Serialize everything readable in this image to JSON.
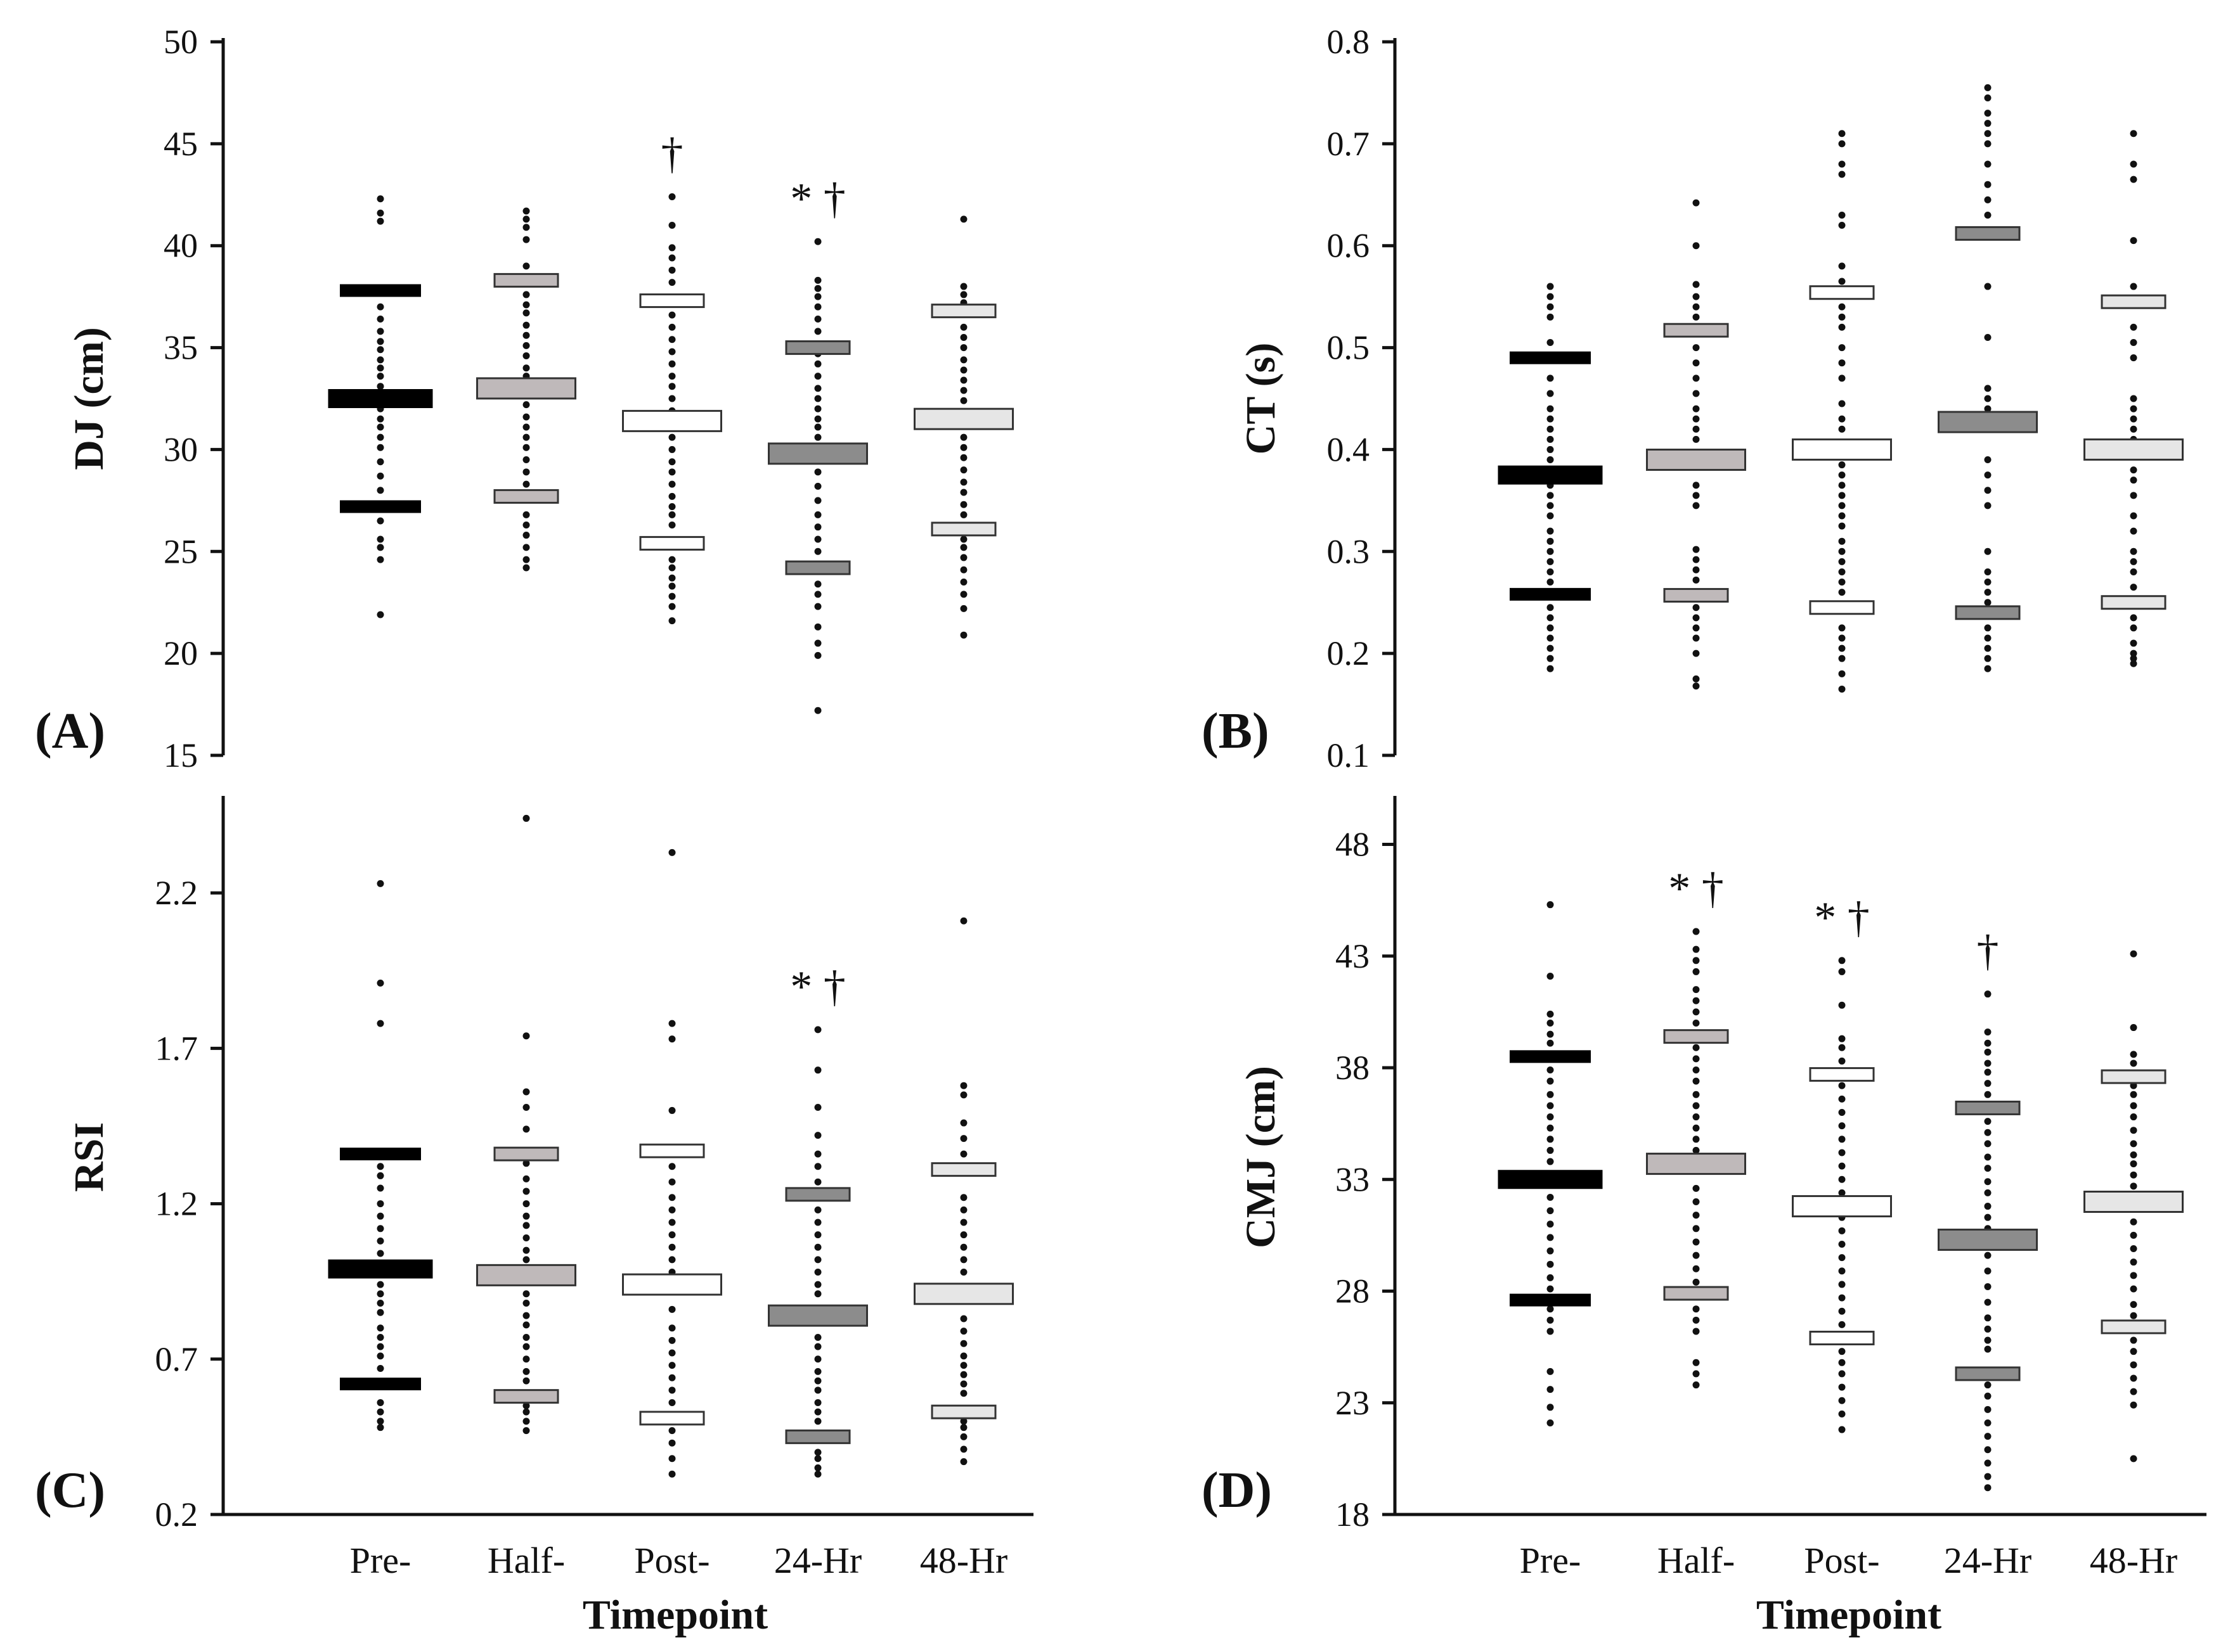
{
  "figure": {
    "x_axis_title": "Timepoint",
    "categories": [
      "Pre-",
      "Half-",
      "Post-",
      "24-Hr",
      "48-Hr"
    ],
    "colors": {
      "Pre-": "#000000",
      "Half-": "#bfb9ba",
      "Post-": "#ffffff",
      "24-Hr": "#8c8c8c",
      "48-Hr": "#e6e6e6",
      "ink": "#111111"
    }
  },
  "chart_data": [
    {
      "id": "A",
      "type": "scatter",
      "panel_label": "(A)",
      "ylabel": "DJ (cm)",
      "ylim": [
        15,
        50
      ],
      "yticks": [
        "15",
        "20",
        "25",
        "30",
        "35",
        "40",
        "45",
        "50"
      ],
      "series": [
        {
          "name": "Pre-",
          "mean": 32.5,
          "upper": 37.8,
          "lower": 27.2,
          "points": [
            21.9,
            24.6,
            25.2,
            25.6,
            26.5,
            28.0,
            28.7,
            29.4,
            30.1,
            30.6,
            31.1,
            31.5,
            32.0,
            33.1,
            33.6,
            34.0,
            34.4,
            34.9,
            35.3,
            35.8,
            36.4,
            37.0,
            41.2,
            41.6,
            42.3
          ]
        },
        {
          "name": "Half-",
          "mean": 33.0,
          "upper": 38.3,
          "lower": 27.7,
          "points": [
            24.2,
            24.6,
            25.2,
            25.8,
            26.3,
            26.8,
            28.3,
            28.9,
            29.5,
            30.1,
            30.6,
            31.1,
            31.6,
            32.2,
            33.6,
            34.0,
            34.6,
            35.1,
            35.6,
            36.1,
            36.7,
            37.1,
            37.6,
            39.0,
            40.3,
            40.9,
            41.3,
            41.7
          ]
        },
        {
          "name": "Post-",
          "mean": 31.4,
          "upper": 37.3,
          "lower": 25.4,
          "points": [
            21.6,
            22.3,
            22.8,
            23.3,
            23.7,
            24.2,
            24.6,
            26.3,
            26.8,
            27.2,
            27.7,
            28.3,
            28.9,
            29.4,
            30.0,
            30.6,
            31.9,
            32.5,
            33.1,
            33.6,
            34.2,
            34.8,
            35.4,
            36.0,
            36.6,
            38.2,
            38.8,
            39.4,
            39.9,
            41.0,
            42.4
          ]
        },
        {
          "name": "24-Hr",
          "mean": 29.8,
          "upper": 35.0,
          "lower": 24.2,
          "points": [
            17.2,
            19.9,
            20.5,
            21.3,
            22.3,
            22.9,
            23.4,
            25.0,
            25.6,
            26.2,
            26.8,
            27.5,
            28.2,
            28.9,
            30.6,
            31.1,
            31.5,
            32.0,
            32.5,
            33.0,
            33.6,
            34.2,
            34.7,
            35.8,
            36.4,
            37.0,
            37.5,
            37.9,
            38.3,
            40.2
          ]
        },
        {
          "name": "48-Hr",
          "mean": 31.5,
          "upper": 36.8,
          "lower": 26.1,
          "points": [
            20.9,
            22.2,
            22.9,
            23.5,
            24.1,
            24.7,
            25.2,
            25.6,
            26.8,
            27.3,
            27.9,
            28.4,
            29.0,
            29.6,
            30.1,
            30.6,
            32.4,
            32.9,
            33.4,
            33.9,
            34.4,
            35.0,
            35.5,
            36.0,
            37.2,
            37.6,
            38.0,
            41.3
          ]
        }
      ],
      "annotations": [
        {
          "category": "Post-",
          "text": "†"
        },
        {
          "category": "24-Hr",
          "text": "* †"
        }
      ]
    },
    {
      "id": "B",
      "type": "scatter",
      "panel_label": "(B)",
      "ylabel": "CT (s)",
      "ylim": [
        0.1,
        0.8
      ],
      "yticks": [
        "0.1",
        "0.2",
        "0.3",
        "0.4",
        "0.5",
        "0.6",
        "0.7",
        "0.8"
      ],
      "series": [
        {
          "name": "Pre-",
          "mean": 0.375,
          "upper": 0.49,
          "lower": 0.258,
          "points": [
            0.185,
            0.195,
            0.205,
            0.215,
            0.225,
            0.235,
            0.245,
            0.27,
            0.28,
            0.29,
            0.3,
            0.31,
            0.32,
            0.335,
            0.345,
            0.355,
            0.365,
            0.39,
            0.4,
            0.41,
            0.42,
            0.43,
            0.44,
            0.455,
            0.47,
            0.505,
            0.53,
            0.54,
            0.55,
            0.56
          ]
        },
        {
          "name": "Half-",
          "mean": 0.39,
          "upper": 0.517,
          "lower": 0.257,
          "points": [
            0.168,
            0.175,
            0.2,
            0.215,
            0.225,
            0.235,
            0.245,
            0.272,
            0.282,
            0.292,
            0.302,
            0.345,
            0.355,
            0.365,
            0.41,
            0.42,
            0.43,
            0.44,
            0.455,
            0.47,
            0.485,
            0.5,
            0.53,
            0.54,
            0.55,
            0.562,
            0.6,
            0.642
          ]
        },
        {
          "name": "Post-",
          "mean": 0.4,
          "upper": 0.554,
          "lower": 0.245,
          "points": [
            0.165,
            0.18,
            0.195,
            0.205,
            0.215,
            0.225,
            0.26,
            0.27,
            0.28,
            0.29,
            0.3,
            0.31,
            0.325,
            0.335,
            0.345,
            0.355,
            0.365,
            0.375,
            0.385,
            0.42,
            0.43,
            0.445,
            0.47,
            0.485,
            0.5,
            0.52,
            0.53,
            0.54,
            0.565,
            0.58,
            0.62,
            0.63,
            0.67,
            0.68,
            0.7,
            0.71
          ]
        },
        {
          "name": "24-Hr",
          "mean": 0.427,
          "upper": 0.612,
          "lower": 0.24,
          "points": [
            0.185,
            0.195,
            0.205,
            0.215,
            0.225,
            0.25,
            0.26,
            0.27,
            0.28,
            0.3,
            0.345,
            0.36,
            0.375,
            0.39,
            0.44,
            0.45,
            0.46,
            0.51,
            0.56,
            0.63,
            0.645,
            0.66,
            0.68,
            0.7,
            0.71,
            0.72,
            0.73,
            0.745,
            0.755
          ]
        },
        {
          "name": "48-Hr",
          "mean": 0.4,
          "upper": 0.545,
          "lower": 0.25,
          "points": [
            0.19,
            0.195,
            0.2,
            0.21,
            0.225,
            0.235,
            0.265,
            0.28,
            0.29,
            0.3,
            0.32,
            0.335,
            0.355,
            0.37,
            0.38,
            0.41,
            0.42,
            0.43,
            0.44,
            0.45,
            0.49,
            0.505,
            0.52,
            0.56,
            0.605,
            0.665,
            0.68,
            0.71
          ]
        }
      ],
      "annotations": []
    },
    {
      "id": "C",
      "type": "scatter",
      "panel_label": "(C)",
      "ylabel": "RSI",
      "ylim": [
        0.2,
        2.5
      ],
      "yticks": [
        "0.2",
        "0.7",
        "1.2",
        "1.7",
        "2.2"
      ],
      "series": [
        {
          "name": "Pre-",
          "mean": 0.99,
          "upper": 1.36,
          "lower": 0.62,
          "points": [
            0.48,
            0.5,
            0.53,
            0.56,
            0.67,
            0.71,
            0.74,
            0.77,
            0.8,
            0.85,
            0.88,
            0.91,
            0.94,
            1.04,
            1.08,
            1.12,
            1.16,
            1.2,
            1.25,
            1.29,
            1.32,
            1.78,
            1.91,
            2.23
          ]
        },
        {
          "name": "Half-",
          "mean": 0.97,
          "upper": 1.36,
          "lower": 0.58,
          "points": [
            0.47,
            0.5,
            0.53,
            0.55,
            0.63,
            0.66,
            0.7,
            0.74,
            0.77,
            0.81,
            0.84,
            0.88,
            0.91,
            1.02,
            1.05,
            1.09,
            1.13,
            1.16,
            1.2,
            1.24,
            1.28,
            1.33,
            1.44,
            1.51,
            1.56,
            1.74,
            2.44
          ]
        },
        {
          "name": "Post-",
          "mean": 0.94,
          "upper": 1.37,
          "lower": 0.51,
          "points": [
            0.33,
            0.38,
            0.43,
            0.47,
            0.56,
            0.6,
            0.64,
            0.68,
            0.72,
            0.76,
            0.8,
            0.86,
            0.98,
            1.02,
            1.06,
            1.1,
            1.14,
            1.18,
            1.22,
            1.27,
            1.32,
            1.5,
            1.73,
            1.78,
            2.33
          ]
        },
        {
          "name": "24-Hr",
          "mean": 0.84,
          "upper": 1.23,
          "lower": 0.45,
          "points": [
            0.33,
            0.35,
            0.38,
            0.4,
            0.5,
            0.53,
            0.56,
            0.6,
            0.63,
            0.66,
            0.7,
            0.74,
            0.77,
            0.91,
            0.94,
            0.98,
            1.02,
            1.06,
            1.1,
            1.14,
            1.18,
            1.27,
            1.32,
            1.36,
            1.42,
            1.51,
            1.63,
            1.76
          ]
        },
        {
          "name": "48-Hr",
          "mean": 0.91,
          "upper": 1.31,
          "lower": 0.53,
          "points": [
            0.37,
            0.41,
            0.45,
            0.48,
            0.5,
            0.59,
            0.62,
            0.65,
            0.68,
            0.71,
            0.75,
            0.79,
            0.83,
            0.98,
            1.02,
            1.06,
            1.1,
            1.14,
            1.18,
            1.22,
            1.36,
            1.41,
            1.46,
            1.55,
            1.58,
            2.11
          ]
        }
      ],
      "annotations": [
        {
          "category": "24-Hr",
          "text": "* †"
        }
      ]
    },
    {
      "id": "D",
      "type": "scatter",
      "panel_label": "(D)",
      "ylabel": "CMJ (cm)",
      "ylim": [
        18,
        50
      ],
      "yticks": [
        "18",
        "23",
        "28",
        "33",
        "38",
        "43",
        "48"
      ],
      "series": [
        {
          "name": "Pre-",
          "mean": 33.0,
          "upper": 38.5,
          "lower": 27.6,
          "points": [
            22.1,
            22.8,
            23.6,
            24.4,
            26.2,
            26.7,
            27.2,
            28.1,
            28.6,
            29.2,
            29.8,
            30.4,
            31.0,
            31.6,
            32.2,
            33.8,
            34.3,
            34.8,
            35.3,
            35.8,
            36.3,
            36.8,
            37.4,
            37.9,
            39.1,
            39.5,
            40.0,
            40.4,
            42.1,
            45.3
          ]
        },
        {
          "name": "Half-",
          "mean": 33.7,
          "upper": 39.4,
          "lower": 27.9,
          "points": [
            23.8,
            24.3,
            24.8,
            26.2,
            26.7,
            27.2,
            28.4,
            29.0,
            29.6,
            30.2,
            30.8,
            31.4,
            32.0,
            32.6,
            34.3,
            34.8,
            35.3,
            35.8,
            36.3,
            36.8,
            37.4,
            37.9,
            38.4,
            38.9,
            40.0,
            40.5,
            41.0,
            41.5,
            42.3,
            42.8,
            43.3,
            44.1
          ]
        },
        {
          "name": "Post-",
          "mean": 31.8,
          "upper": 37.7,
          "lower": 25.9,
          "points": [
            21.8,
            22.5,
            23.1,
            23.7,
            24.3,
            24.8,
            25.3,
            26.5,
            27.1,
            27.7,
            28.3,
            28.9,
            29.5,
            30.1,
            30.7,
            31.3,
            32.4,
            33.0,
            33.6,
            34.2,
            34.8,
            35.4,
            36.0,
            36.6,
            37.2,
            38.3,
            38.9,
            39.3,
            40.8,
            42.3,
            42.8
          ]
        },
        {
          "name": "24-Hr",
          "mean": 30.3,
          "upper": 36.2,
          "lower": 24.3,
          "points": [
            19.2,
            19.7,
            20.3,
            20.9,
            21.5,
            22.1,
            22.7,
            23.3,
            23.8,
            25.4,
            25.8,
            26.3,
            26.8,
            27.5,
            28.2,
            28.9,
            29.6,
            30.8,
            31.3,
            31.8,
            32.4,
            32.9,
            33.5,
            34.0,
            34.6,
            35.1,
            35.6,
            36.8,
            37.3,
            37.8,
            38.2,
            38.7,
            39.1,
            39.6,
            41.3
          ]
        },
        {
          "name": "48-Hr",
          "mean": 32.0,
          "upper": 37.6,
          "lower": 26.4,
          "points": [
            20.5,
            22.9,
            23.5,
            24.1,
            24.7,
            25.3,
            25.8,
            26.9,
            27.4,
            28.1,
            28.7,
            29.3,
            29.9,
            30.5,
            31.1,
            32.7,
            33.2,
            33.7,
            34.1,
            34.6,
            35.2,
            35.8,
            36.3,
            36.8,
            37.2,
            38.2,
            38.6,
            39.8,
            43.1
          ]
        }
      ],
      "annotations": [
        {
          "category": "Half-",
          "text": "* †"
        },
        {
          "category": "Post-",
          "text": "* †"
        },
        {
          "category": "24-Hr",
          "text": "†"
        }
      ]
    }
  ]
}
